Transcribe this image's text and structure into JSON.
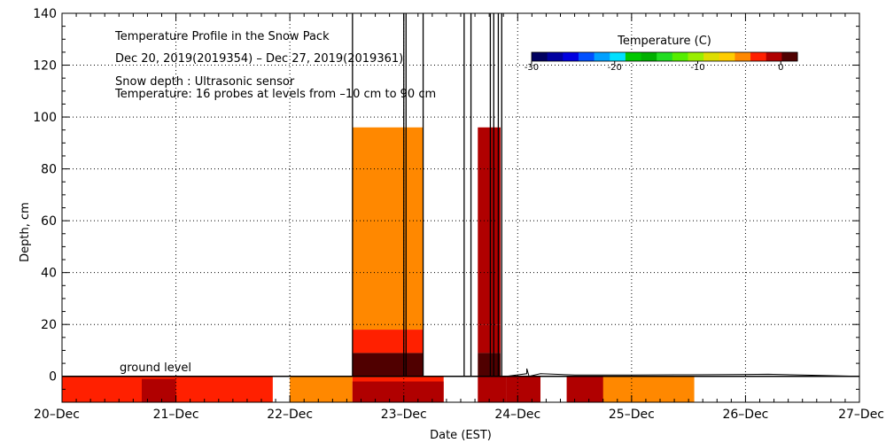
{
  "chart_data": {
    "type": "heatmap",
    "title": "Temperature Profile in the Snow Pack",
    "date_range": "Dec 20, 2019(2019354) – Dec 27, 2019(2019361)",
    "notes": [
      "Snow depth : Ultrasonic sensor",
      "Temperature: 16 probes at levels from –10 cm to 90 cm"
    ],
    "xlabel": "Date (EST)",
    "ylabel": "Depth, cm",
    "x_tick_labels": [
      "20–Dec",
      "21–Dec",
      "22–Dec",
      "23–Dec",
      "24–Dec",
      "25–Dec",
      "26–Dec",
      "27–Dec"
    ],
    "xlim_days": [
      0,
      7
    ],
    "ylim": [
      -10,
      140
    ],
    "y_ticks": [
      0,
      20,
      40,
      60,
      80,
      100,
      120,
      140
    ],
    "ground_label": "ground level",
    "grid": true,
    "colorbar": {
      "title": "Temperature (C)",
      "min": -30,
      "max": 2,
      "tick_labels": [
        -30,
        -20,
        -10,
        0
      ],
      "colors": [
        "#000060",
        "#0000a0",
        "#0000e0",
        "#0050ff",
        "#00a0ff",
        "#00e0ff",
        "#00c800",
        "#00b000",
        "#22dd22",
        "#55ee00",
        "#99ee00",
        "#dddd00",
        "#ffcc00",
        "#ff8800",
        "#ff2000",
        "#b00000",
        "#500000"
      ]
    },
    "temperature_cells": [
      {
        "day_start": 0.0,
        "day_end": 1.0,
        "depth_top": 0,
        "depth_bottom": -10,
        "temp_c": -3
      },
      {
        "day_start": 0.7,
        "day_end": 1.3,
        "depth_top": -1,
        "depth_bottom": -10,
        "temp_c": -1
      },
      {
        "day_start": 1.0,
        "day_end": 1.85,
        "depth_top": 0,
        "depth_bottom": -10,
        "temp_c": -3
      },
      {
        "day_start": 2.0,
        "day_end": 2.55,
        "depth_top": 0,
        "depth_bottom": -10,
        "temp_c": -5
      },
      {
        "day_start": 2.55,
        "day_end": 3.35,
        "depth_top": 0,
        "depth_bottom": -10,
        "temp_c": -3
      },
      {
        "day_start": 2.55,
        "day_end": 3.35,
        "depth_top": -2,
        "depth_bottom": -10,
        "temp_c": -1
      },
      {
        "day_start": 2.55,
        "day_end": 3.17,
        "depth_top": 96,
        "depth_bottom": 18,
        "temp_c": -5
      },
      {
        "day_start": 2.55,
        "day_end": 3.17,
        "depth_top": 18,
        "depth_bottom": 9,
        "temp_c": -3
      },
      {
        "day_start": 2.55,
        "day_end": 3.17,
        "depth_top": 9,
        "depth_bottom": 0,
        "temp_c": 1
      },
      {
        "day_start": 3.65,
        "day_end": 3.85,
        "depth_top": 96,
        "depth_bottom": 20,
        "temp_c": 0
      },
      {
        "day_start": 3.65,
        "day_end": 3.85,
        "depth_top": 20,
        "depth_bottom": 9,
        "temp_c": -1
      },
      {
        "day_start": 3.65,
        "day_end": 3.85,
        "depth_top": 9,
        "depth_bottom": 0,
        "temp_c": 1
      },
      {
        "day_start": 3.65,
        "day_end": 3.9,
        "depth_top": 0,
        "depth_bottom": -10,
        "temp_c": -1
      },
      {
        "day_start": 3.9,
        "day_end": 4.2,
        "depth_top": 0,
        "depth_bottom": -10,
        "temp_c": 0
      },
      {
        "day_start": 4.43,
        "day_end": 5.0,
        "depth_top": 0,
        "depth_bottom": -10,
        "temp_c": -1
      },
      {
        "day_start": 4.75,
        "day_end": 5.55,
        "depth_top": 0,
        "depth_bottom": -10,
        "temp_c": -5
      }
    ],
    "snow_depth_spikes": [
      {
        "day": 2.55,
        "depth_top": 140
      },
      {
        "day": 3.0,
        "depth_top": 140
      },
      {
        "day": 3.02,
        "depth_top": 140
      },
      {
        "day": 3.17,
        "depth_top": 140
      },
      {
        "day": 3.53,
        "depth_top": 140
      },
      {
        "day": 3.59,
        "depth_top": 140
      },
      {
        "day": 3.76,
        "depth_top": 140
      },
      {
        "day": 3.79,
        "depth_top": 140
      },
      {
        "day": 3.83,
        "depth_top": 140
      },
      {
        "day": 3.86,
        "depth_top": 140
      }
    ],
    "snow_depth_line": [
      [
        0.0,
        0
      ],
      [
        3.9,
        0
      ],
      [
        4.08,
        1
      ],
      [
        4.08,
        3
      ],
      [
        4.1,
        0
      ],
      [
        4.2,
        1
      ],
      [
        4.5,
        0.5
      ],
      [
        5.0,
        0.5
      ],
      [
        5.5,
        0.6
      ],
      [
        6.0,
        0.7
      ],
      [
        6.2,
        0.8
      ],
      [
        7.0,
        0
      ]
    ]
  }
}
